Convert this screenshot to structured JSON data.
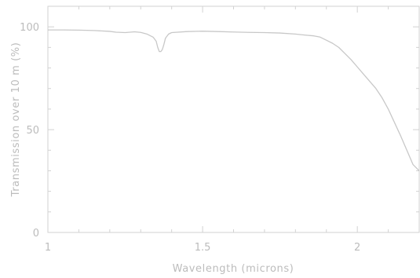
{
  "chart_data": {
    "type": "line",
    "title": "",
    "xlabel": "Wavelength (microns)",
    "ylabel": "Transmission over 10 m (%)",
    "xlim": [
      1.0,
      2.2
    ],
    "ylim": [
      0,
      110
    ],
    "x_ticks": [
      1,
      1.5,
      2
    ],
    "x_tick_labels": [
      "1",
      "1.5",
      "2"
    ],
    "y_ticks": [
      0,
      50,
      100
    ],
    "y_tick_labels": [
      "0",
      "50",
      "100"
    ],
    "grid": false,
    "colors": {
      "axes": "#d2d2d2",
      "line": "#c8c8c8",
      "text": "#bcbcbc"
    },
    "series": [
      {
        "x": [
          1.0,
          1.05,
          1.1,
          1.15,
          1.2,
          1.22,
          1.25,
          1.28,
          1.3,
          1.32,
          1.34,
          1.35,
          1.355,
          1.36,
          1.365,
          1.37,
          1.375,
          1.38,
          1.39,
          1.4,
          1.45,
          1.5,
          1.55,
          1.6,
          1.65,
          1.7,
          1.75,
          1.8,
          1.83,
          1.86,
          1.88,
          1.9,
          1.92,
          1.94,
          1.96,
          1.98,
          2.0,
          2.02,
          2.04,
          2.06,
          2.08,
          2.1,
          2.12,
          2.14,
          2.16,
          2.18,
          2.2
        ],
        "y": [
          98.5,
          98.5,
          98.4,
          98.2,
          97.8,
          97.4,
          97.2,
          97.6,
          97.3,
          96.5,
          95.0,
          93.0,
          90.0,
          88.0,
          88.0,
          89.0,
          91.5,
          94.5,
          96.5,
          97.2,
          97.7,
          97.9,
          97.7,
          97.5,
          97.3,
          97.2,
          97.0,
          96.5,
          96.0,
          95.6,
          95.0,
          93.5,
          92.0,
          90.0,
          87.0,
          84.0,
          80.5,
          77.0,
          73.5,
          70.0,
          65.5,
          60.0,
          53.5,
          47.0,
          40.0,
          33.0,
          30.0
        ]
      }
    ]
  }
}
